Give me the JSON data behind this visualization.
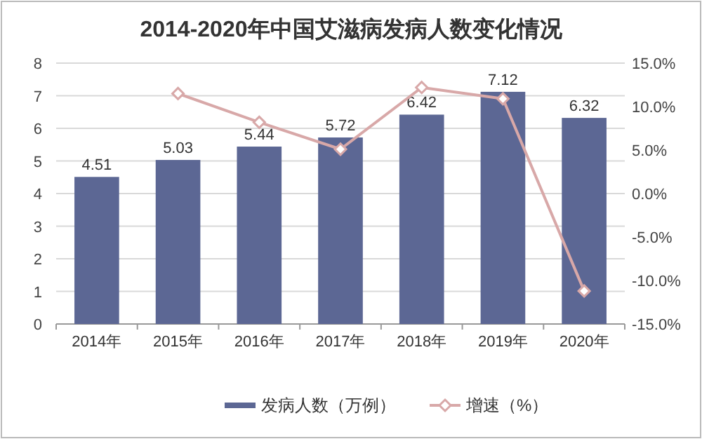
{
  "chart_data": {
    "type": "bar",
    "title": "2014-2020年中国艾滋病发病人数变化情况",
    "categories": [
      "2014年",
      "2015年",
      "2016年",
      "2017年",
      "2018年",
      "2019年",
      "2020年"
    ],
    "series": [
      {
        "name": "发病人数（万例）",
        "type": "bar",
        "color": "#5c6794",
        "values": [
          4.51,
          5.03,
          5.44,
          5.72,
          6.42,
          7.12,
          6.32
        ],
        "value_labels": [
          "4.51",
          "5.03",
          "5.44",
          "5.72",
          "6.42",
          "7.12",
          "6.32"
        ]
      },
      {
        "name": "增速（%）",
        "type": "line",
        "axis": "y2",
        "color": "#d8a8a8",
        "marker": "diamond",
        "values": [
          null,
          11.5,
          8.2,
          5.1,
          12.2,
          10.9,
          -11.2
        ]
      }
    ],
    "ylim": [
      0,
      8
    ],
    "yticks": [
      0,
      1,
      2,
      3,
      4,
      5,
      6,
      7,
      8
    ],
    "y2lim": [
      -15,
      15
    ],
    "y2ticks": [
      {
        "value": -15,
        "label": "-15.0%"
      },
      {
        "value": -10,
        "label": "-10.0%"
      },
      {
        "value": -5,
        "label": "-5.0%"
      },
      {
        "value": 0,
        "label": "0.0%"
      },
      {
        "value": 5,
        "label": "5.0%"
      },
      {
        "value": 10,
        "label": "10.0%"
      },
      {
        "value": 15,
        "label": "15.0%"
      }
    ],
    "grid": "y",
    "legend": "bottom"
  }
}
